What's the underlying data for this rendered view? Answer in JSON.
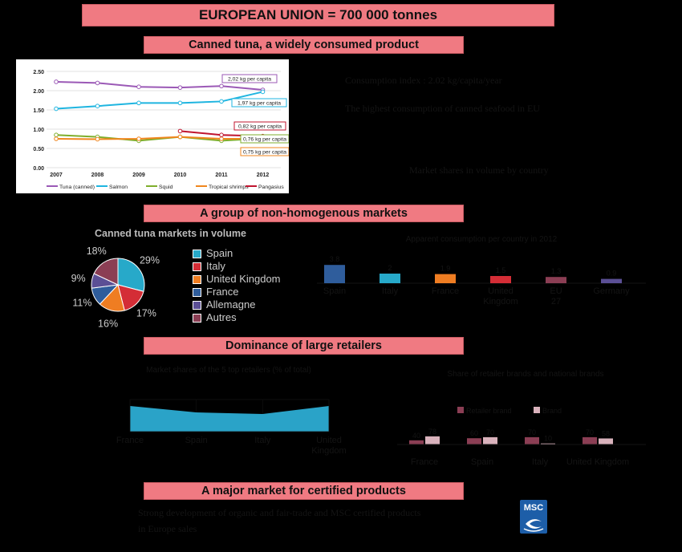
{
  "title": "EUROPEAN UNION = 700 000 tonnes",
  "sections": {
    "s1": "Canned tuna, a widely consumed product",
    "s2": "A group of non-homogenous markets",
    "s3": "Dominance of large retailers",
    "s4": "A major market for certified products"
  },
  "side_texts": {
    "s1_line1": "Consumption index : 2.02 kg/capita/year",
    "s1_line2": "The highest consumption of canned seafood in EU",
    "s1_line3": "Market shares in volume by country",
    "s4_line1": "Strong development of organic and fair-trade and MSC certified products",
    "s4_line2": "in Europe sales"
  },
  "colors": {
    "banner": "#f07a82",
    "tuna": "#9b59b6",
    "salmon": "#1fb5e0",
    "squid": "#7fae2c",
    "shrimps": "#f0861e",
    "pangasius": "#c0152f",
    "spain": "#27a9c9",
    "italy": "#d42d36",
    "uk": "#ef7d22",
    "france": "#2f5d9c",
    "allemagne": "#5b4f95",
    "autres": "#8b3e54"
  },
  "chart_data": [
    {
      "type": "line",
      "x": [
        "2007",
        "2008",
        "2009",
        "2010",
        "2011",
        "2012"
      ],
      "ylim": [
        0,
        2.5
      ],
      "yticks": [
        "0.00",
        "0.50",
        "1.00",
        "1.50",
        "2.00",
        "2.50"
      ],
      "grid": true,
      "legend_position": "bottom",
      "series": [
        {
          "name": "Tuna (canned)",
          "values": [
            2.23,
            2.2,
            2.1,
            2.08,
            2.12,
            2.02
          ]
        },
        {
          "name": "Salmon",
          "values": [
            1.53,
            1.6,
            1.68,
            1.68,
            1.72,
            1.97
          ]
        },
        {
          "name": "Squid",
          "values": [
            0.85,
            0.8,
            0.7,
            0.8,
            0.7,
            0.76
          ]
        },
        {
          "name": "Tropical shrimps",
          "values": [
            0.75,
            0.74,
            0.75,
            0.8,
            0.75,
            0.75
          ]
        },
        {
          "name": "Pangasius",
          "values": [
            null,
            null,
            null,
            0.95,
            0.85,
            0.82
          ]
        }
      ],
      "annotations": [
        "2,02 kg per capita",
        "1,97 kg per capita",
        "0,82 kg per capita",
        "0,76 kg per capita",
        "0,75 kg per capita"
      ]
    },
    {
      "type": "pie",
      "title": "Canned tuna markets in volume",
      "categories": [
        "Spain",
        "Italy",
        "United Kingdom",
        "France",
        "Allemagne",
        "Autres"
      ],
      "values": [
        29,
        17,
        16,
        11,
        9,
        18
      ],
      "labels": [
        "29%",
        "17%",
        "16%",
        "11%",
        "9%",
        "18%"
      ],
      "legend_position": "right"
    },
    {
      "type": "bar",
      "title": "Apparent consumption per country in 2012",
      "categories": [
        "Spain",
        "Italy",
        "France",
        "United Kingdom",
        "EU 27",
        "Germany"
      ],
      "values": [
        3.8,
        2.0,
        1.9,
        1.5,
        1.3,
        0.9
      ]
    },
    {
      "type": "area",
      "title": "Market shares of the 5 top retailers (% of total)",
      "categories": [
        "France",
        "Spain",
        "Italy",
        "United Kingdom"
      ],
      "values": [
        80,
        60,
        55,
        80
      ],
      "ylim": [
        0,
        100
      ]
    },
    {
      "type": "bar",
      "title": "Share of retailer brands and national brands",
      "categories": [
        "France",
        "Spain",
        "Italy",
        "United Kingdom"
      ],
      "series": [
        {
          "name": "Retailer brand",
          "values": [
            40,
            60,
            70,
            70
          ]
        },
        {
          "name": "Brand",
          "values": [
            78,
            70,
            10,
            58
          ]
        }
      ]
    }
  ],
  "logo": {
    "text": "MSC"
  }
}
